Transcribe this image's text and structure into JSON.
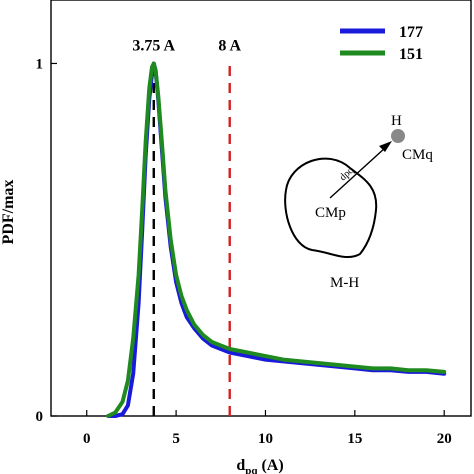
{
  "chart_data": {
    "type": "line",
    "xlabel_main": "d",
    "xlabel_sub": "pq",
    "xlabel_unit": " (A)",
    "ylabel": "PDF/max",
    "xlim": [
      -2,
      21.5
    ],
    "ylim": [
      0,
      1.18
    ],
    "xticks": [
      0,
      5,
      10,
      15,
      20
    ],
    "yticks": [
      0,
      1
    ],
    "grid": false,
    "legend_position": "top-right",
    "series": [
      {
        "name": "177",
        "color": "#1a1adb",
        "x": [
          1.2,
          1.6,
          2.0,
          2.3,
          2.6,
          2.9,
          3.1,
          3.3,
          3.5,
          3.65,
          3.75,
          3.85,
          4.0,
          4.2,
          4.4,
          4.7,
          5.0,
          5.3,
          5.6,
          6.0,
          6.5,
          7.0,
          7.5,
          8.0,
          9.0,
          10.0,
          11.0,
          12.0,
          13.0,
          14.0,
          15.0,
          16.0,
          17.0,
          18.0,
          19.0,
          20.0
        ],
        "y": [
          0.0,
          0.0,
          0.005,
          0.03,
          0.12,
          0.32,
          0.52,
          0.74,
          0.9,
          0.97,
          1.0,
          0.98,
          0.9,
          0.76,
          0.62,
          0.48,
          0.38,
          0.32,
          0.28,
          0.25,
          0.22,
          0.2,
          0.19,
          0.18,
          0.17,
          0.16,
          0.155,
          0.15,
          0.145,
          0.14,
          0.135,
          0.13,
          0.13,
          0.125,
          0.125,
          0.12
        ]
      },
      {
        "name": "151",
        "color": "#1f8a1f",
        "x": [
          1.2,
          1.6,
          2.0,
          2.3,
          2.6,
          2.9,
          3.1,
          3.3,
          3.5,
          3.65,
          3.75,
          3.85,
          4.0,
          4.2,
          4.4,
          4.7,
          5.0,
          5.3,
          5.6,
          6.0,
          6.5,
          7.0,
          7.5,
          8.0,
          9.0,
          10.0,
          11.0,
          12.0,
          13.0,
          14.0,
          15.0,
          16.0,
          17.0,
          18.0,
          19.0,
          20.0
        ],
        "y": [
          0.0,
          0.01,
          0.04,
          0.1,
          0.22,
          0.4,
          0.58,
          0.78,
          0.93,
          0.99,
          1.0,
          0.98,
          0.91,
          0.78,
          0.64,
          0.5,
          0.4,
          0.34,
          0.3,
          0.26,
          0.23,
          0.21,
          0.2,
          0.19,
          0.18,
          0.17,
          0.16,
          0.155,
          0.15,
          0.145,
          0.14,
          0.135,
          0.135,
          0.13,
          0.13,
          0.125
        ]
      }
    ],
    "vlines": [
      {
        "x": 3.75,
        "label": "3.75 A",
        "color": "#000000"
      },
      {
        "x": 8,
        "label": "8 A",
        "color": "#d62020"
      }
    ],
    "inset": {
      "blob_label": "CMp",
      "edge_label": "dpq",
      "point_label": "H",
      "target_label": "CMq",
      "caption": "M-H"
    }
  }
}
